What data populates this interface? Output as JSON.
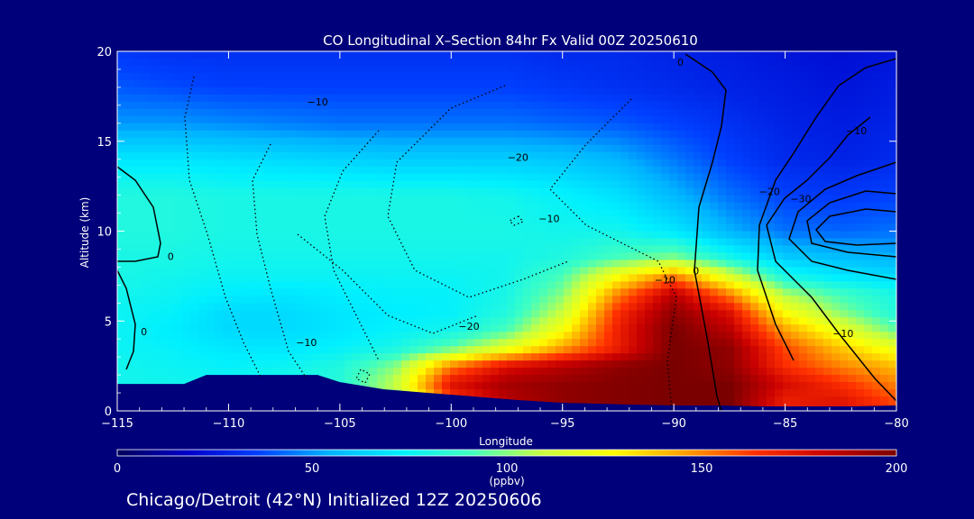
{
  "chart_data": {
    "type": "heatmap",
    "title": "CO Longitudinal X–Section 84hr  Fx Valid 00Z 20250610",
    "xlabel": "Longitude",
    "ylabel": "Altitude (km)",
    "xlim": [
      -115,
      -80
    ],
    "ylim": [
      0,
      20
    ],
    "xticks": [
      -115,
      -110,
      -105,
      -100,
      -95,
      -90,
      -85,
      -80
    ],
    "xtick_labels": [
      "−115",
      "−110",
      "−105",
      "−100",
      "−95",
      "−90",
      "−85",
      "−80"
    ],
    "yticks": [
      0,
      5,
      10,
      15,
      20
    ],
    "ytick_labels": [
      "0",
      "5",
      "10",
      "15",
      "20"
    ],
    "colorbar": {
      "min": 0,
      "max": 200,
      "ticks": [
        0,
        50,
        100,
        150,
        200
      ],
      "tick_labels": [
        "0",
        "50",
        "100",
        "150",
        "200"
      ],
      "unit": "(ppbv)"
    },
    "co_field_ppbv": {
      "x": [
        -115,
        -112.5,
        -110,
        -107.5,
        -105,
        -102.5,
        -100,
        -97.5,
        -95,
        -92.5,
        -90,
        -87.5,
        -85,
        -82.5,
        -80
      ],
      "y": [
        0.5,
        1.5,
        2.5,
        3.5,
        4.5,
        5.5,
        6.5,
        7.5,
        8.5,
        10,
        12,
        14,
        16,
        18,
        20
      ],
      "values": [
        [
          78,
          78,
          80,
          80,
          82,
          95,
          160,
          185,
          195,
          198,
          200,
          200,
          170,
          175,
          160
        ],
        [
          78,
          78,
          78,
          80,
          84,
          110,
          175,
          190,
          195,
          198,
          200,
          200,
          178,
          165,
          150
        ],
        [
          78,
          76,
          74,
          76,
          82,
          100,
          150,
          175,
          185,
          195,
          200,
          195,
          165,
          150,
          140
        ],
        [
          76,
          74,
          70,
          70,
          74,
          80,
          95,
          118,
          145,
          170,
          200,
          195,
          160,
          138,
          120
        ],
        [
          76,
          72,
          66,
          66,
          70,
          74,
          78,
          92,
          125,
          170,
          200,
          185,
          145,
          120,
          95
        ],
        [
          76,
          74,
          66,
          66,
          70,
          72,
          74,
          82,
          110,
          165,
          195,
          175,
          125,
          100,
          82
        ],
        [
          78,
          76,
          72,
          70,
          72,
          74,
          74,
          80,
          100,
          150,
          185,
          150,
          105,
          90,
          80
        ],
        [
          80,
          78,
          76,
          76,
          76,
          76,
          76,
          78,
          92,
          125,
          150,
          115,
          80,
          70,
          66
        ],
        [
          80,
          80,
          78,
          78,
          78,
          78,
          78,
          78,
          82,
          92,
          100,
          80,
          62,
          58,
          55
        ],
        [
          82,
          82,
          80,
          80,
          80,
          80,
          80,
          80,
          78,
          78,
          70,
          55,
          44,
          42,
          44
        ],
        [
          82,
          82,
          80,
          80,
          80,
          80,
          80,
          78,
          74,
          68,
          56,
          44,
          36,
          34,
          36
        ],
        [
          70,
          70,
          68,
          66,
          64,
          62,
          62,
          62,
          60,
          55,
          45,
          36,
          30,
          28,
          30
        ],
        [
          50,
          50,
          48,
          46,
          44,
          44,
          44,
          44,
          42,
          40,
          36,
          32,
          28,
          26,
          28
        ],
        [
          40,
          38,
          36,
          36,
          36,
          36,
          36,
          36,
          34,
          32,
          30,
          28,
          26,
          24,
          26
        ],
        [
          34,
          32,
          32,
          32,
          32,
          32,
          32,
          32,
          30,
          30,
          28,
          26,
          24,
          22,
          24
        ]
      ]
    },
    "terrain_km": {
      "x": [
        -115,
        -114.5,
        -112,
        -111,
        -107,
        -106,
        -105,
        -103,
        -101,
        -99,
        -97,
        -95,
        -92,
        -90,
        -88,
        -86,
        -84,
        -82,
        -80
      ],
      "y": [
        1.5,
        1.5,
        1.5,
        2.0,
        2.0,
        2.0,
        1.6,
        1.2,
        1.0,
        0.8,
        0.6,
        0.45,
        0.35,
        0.3,
        0.3,
        0.25,
        0.25,
        0.25,
        0.3
      ]
    },
    "contour_labels": [
      {
        "text": "0",
        "lon": -89.7,
        "alt": 19.2
      },
      {
        "text": "−10",
        "lon": -81.8,
        "alt": 15.4
      },
      {
        "text": "−10",
        "lon": -106.0,
        "alt": 17.0
      },
      {
        "text": "−20",
        "lon": -97.0,
        "alt": 13.9
      },
      {
        "text": "−20",
        "lon": -85.7,
        "alt": 12.0
      },
      {
        "text": "−30",
        "lon": -84.3,
        "alt": 11.6
      },
      {
        "text": "−10",
        "lon": -95.6,
        "alt": 10.5
      },
      {
        "text": "0",
        "lon": -112.6,
        "alt": 8.4
      },
      {
        "text": "0",
        "lon": -89.0,
        "alt": 7.6
      },
      {
        "text": "−10",
        "lon": -90.4,
        "alt": 7.1
      },
      {
        "text": "−20",
        "lon": -99.2,
        "alt": 4.5
      },
      {
        "text": "−10",
        "lon": -106.5,
        "alt": 3.6
      },
      {
        "text": "0",
        "lon": -113.8,
        "alt": 4.2
      },
      {
        "text": "−10",
        "lon": -82.4,
        "alt": 4.1
      }
    ]
  },
  "footer": "Chicago/Detroit (42°N) Initialized 12Z 20250606",
  "colors": {
    "background": "#00007a",
    "colormap": [
      "#00005a",
      "#0000c8",
      "#0040ff",
      "#00b4ff",
      "#00f0ff",
      "#40ffc0",
      "#c8ff40",
      "#ffff00",
      "#ffa000",
      "#ff3000",
      "#c80000",
      "#7a0000"
    ]
  }
}
